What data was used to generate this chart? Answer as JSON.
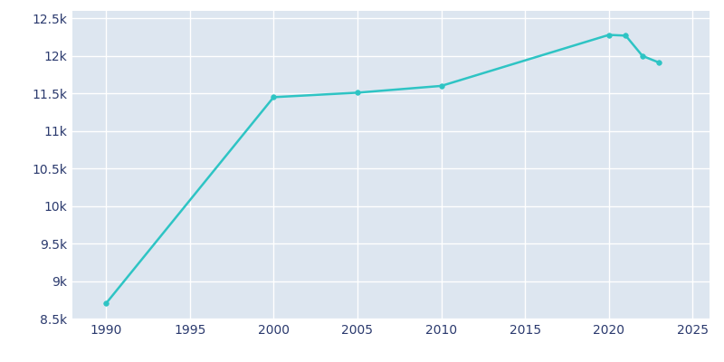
{
  "years": [
    1990,
    2000,
    2005,
    2010,
    2020,
    2021,
    2022,
    2023
  ],
  "population": [
    8700,
    11450,
    11510,
    11600,
    12280,
    12270,
    12000,
    11910
  ],
  "line_color": "#2ec4c4",
  "marker_color": "#2ec4c4",
  "axes_bg_color": "#dde6f0",
  "fig_bg_color": "#ffffff",
  "grid_color": "#ffffff",
  "text_color": "#2b3a6e",
  "xlim": [
    1988,
    2026
  ],
  "ylim": [
    8500,
    12600
  ],
  "yticks": [
    8500,
    9000,
    9500,
    10000,
    10500,
    11000,
    11500,
    12000,
    12500
  ],
  "ytick_labels": [
    "8.5k",
    "9k",
    "9.5k",
    "10k",
    "10.5k",
    "11k",
    "11.5k",
    "12k",
    "12.5k"
  ],
  "xticks": [
    1990,
    1995,
    2000,
    2005,
    2010,
    2015,
    2020,
    2025
  ],
  "figsize": [
    8.0,
    4.0
  ],
  "dpi": 100
}
